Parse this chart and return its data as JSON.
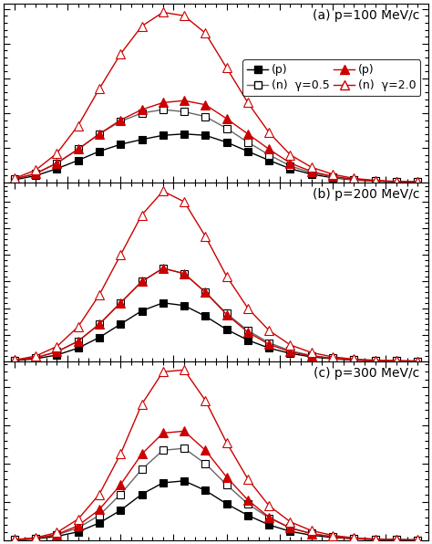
{
  "title_a": "(a) p=100 MeV/c",
  "title_b": "(b) p=200 MeV/c",
  "title_c": "(c) p=300 MeV/c",
  "x": [
    0,
    1,
    2,
    3,
    4,
    5,
    6,
    7,
    8,
    9,
    10,
    11,
    12,
    13,
    14,
    15,
    16,
    17,
    18,
    19
  ],
  "panel_a": {
    "p_gamma05": [
      0.4,
      1.0,
      2.0,
      3.2,
      4.5,
      5.5,
      6.2,
      6.8,
      7.0,
      6.8,
      5.8,
      4.5,
      3.2,
      2.0,
      1.2,
      0.7,
      0.38,
      0.22,
      0.13,
      0.08
    ],
    "n_gamma05": [
      0.5,
      1.3,
      2.8,
      4.8,
      7.0,
      8.8,
      10.0,
      10.5,
      10.2,
      9.5,
      7.8,
      5.8,
      4.0,
      2.4,
      1.4,
      0.8,
      0.42,
      0.23,
      0.13,
      0.08
    ],
    "p_gamma20": [
      0.5,
      1.3,
      2.8,
      4.8,
      7.0,
      9.0,
      10.5,
      11.5,
      11.8,
      11.2,
      9.2,
      7.0,
      4.8,
      2.8,
      1.6,
      0.9,
      0.48,
      0.26,
      0.14,
      0.09
    ],
    "n_gamma20": [
      0.6,
      1.8,
      4.2,
      8.2,
      13.5,
      18.5,
      22.5,
      24.5,
      24.0,
      21.5,
      16.5,
      11.5,
      7.2,
      4.0,
      2.2,
      1.2,
      0.6,
      0.32,
      0.17,
      0.1
    ]
  },
  "panel_b": {
    "p_gamma05": [
      0.15,
      0.5,
      1.2,
      2.5,
      4.5,
      7.0,
      9.5,
      11.0,
      10.5,
      8.5,
      6.0,
      4.0,
      2.5,
      1.5,
      0.85,
      0.48,
      0.26,
      0.14,
      0.08,
      0.05
    ],
    "n_gamma05": [
      0.2,
      0.7,
      1.8,
      3.8,
      7.0,
      11.0,
      15.0,
      17.5,
      16.5,
      13.0,
      9.0,
      5.8,
      3.5,
      2.0,
      1.1,
      0.6,
      0.32,
      0.17,
      0.09,
      0.06
    ],
    "p_gamma20": [
      0.2,
      0.7,
      1.8,
      3.8,
      7.0,
      11.0,
      15.0,
      17.5,
      16.5,
      13.0,
      8.8,
      5.5,
      3.2,
      1.8,
      1.0,
      0.55,
      0.28,
      0.15,
      0.08,
      0.05
    ],
    "n_gamma20": [
      0.25,
      1.0,
      2.8,
      6.5,
      12.5,
      20.0,
      27.5,
      32.0,
      30.0,
      23.5,
      16.0,
      10.0,
      5.8,
      3.1,
      1.65,
      0.85,
      0.42,
      0.21,
      0.11,
      0.06
    ]
  },
  "panel_c": {
    "p_gamma05": [
      0.1,
      0.35,
      1.0,
      2.2,
      4.5,
      7.8,
      12.0,
      15.0,
      15.5,
      13.0,
      9.5,
      6.5,
      4.0,
      2.3,
      1.3,
      0.7,
      0.38,
      0.2,
      0.11,
      0.06
    ],
    "n_gamma05": [
      0.12,
      0.45,
      1.4,
      3.2,
      6.5,
      12.0,
      18.5,
      23.5,
      24.0,
      20.0,
      14.5,
      9.5,
      5.8,
      3.2,
      1.75,
      0.9,
      0.48,
      0.25,
      0.13,
      0.07
    ],
    "p_gamma20": [
      0.12,
      0.5,
      1.5,
      3.8,
      8.0,
      14.5,
      22.5,
      28.0,
      28.5,
      23.5,
      16.5,
      10.5,
      6.0,
      3.2,
      1.7,
      0.88,
      0.44,
      0.22,
      0.11,
      0.06
    ],
    "n_gamma20": [
      0.15,
      0.65,
      2.0,
      5.5,
      12.0,
      22.5,
      35.5,
      44.0,
      44.5,
      36.5,
      25.5,
      16.0,
      9.0,
      4.8,
      2.5,
      1.25,
      0.6,
      0.3,
      0.15,
      0.08
    ]
  },
  "color_black": "#000000",
  "color_gray": "#666666",
  "color_red": "#cc0000",
  "background": "#ffffff",
  "legend_row1": [
    "(p)",
    "(n) γ=0.5"
  ],
  "legend_row2": [
    "(p)",
    "(n) γ=2.0"
  ]
}
